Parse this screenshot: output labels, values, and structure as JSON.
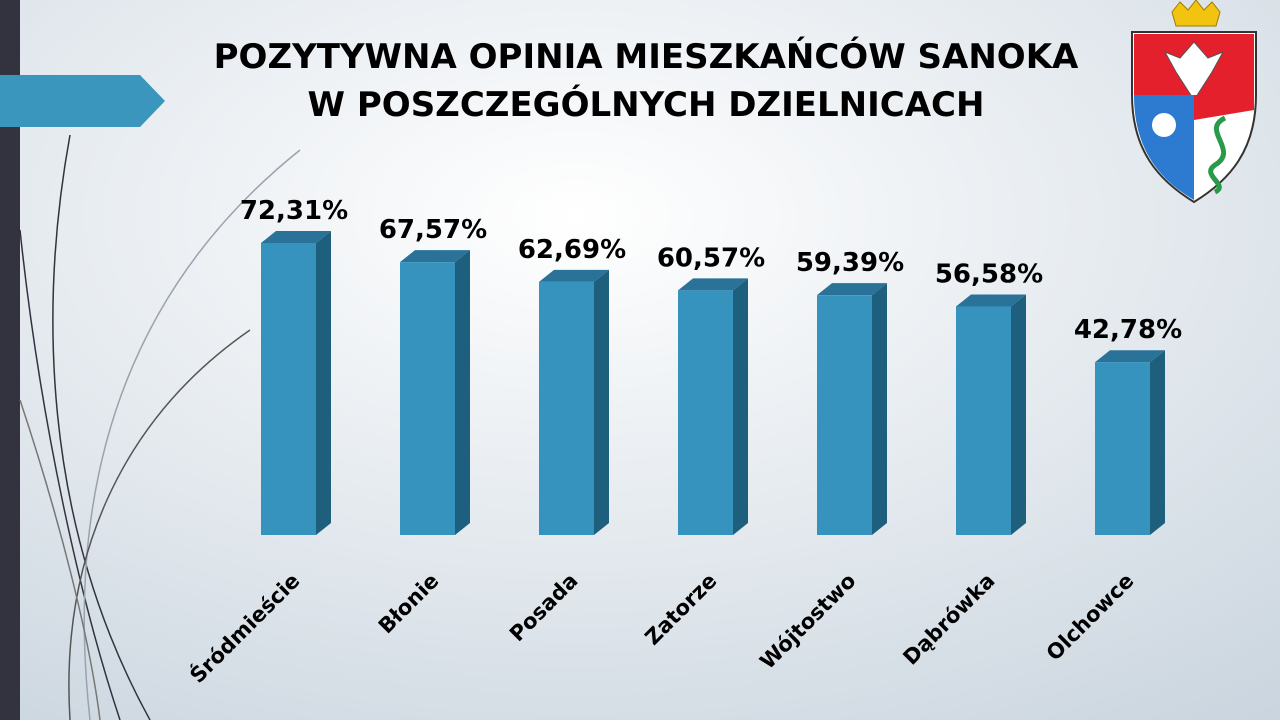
{
  "chart_data": {
    "type": "bar3d",
    "title": [
      "POZYTYWNA OPINIA MIESZKAŃCÓW SANOKA",
      "W POSZCZEGÓLNYCH DZIELNICACH"
    ],
    "categories": [
      "Śródmieście",
      "Błonie",
      "Posada",
      "Zatorze",
      "Wójtostwo",
      "Dąbrówka",
      "Olchowce"
    ],
    "values": [
      72.31,
      67.57,
      62.69,
      60.57,
      59.39,
      56.58,
      42.78
    ],
    "value_labels": [
      "72,31%",
      "67,57%",
      "62,69%",
      "60,57%",
      "59,39%",
      "56,58%",
      "42,78%"
    ],
    "color": "#3593bd"
  }
}
